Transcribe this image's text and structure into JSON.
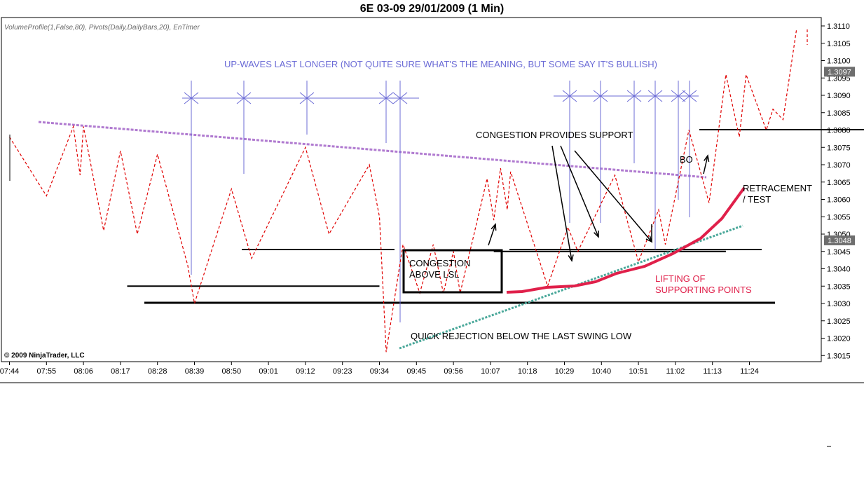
{
  "window": {
    "title": "6E 03-09  29/01/2009 (1 Min)"
  },
  "chart_data": {
    "type": "line",
    "indicator_label": "VolumeProfile(1,False,80), Pivots(Daily,DailyBars,20), EnTimer",
    "copyright": "© 2009 NinjaTrader, LLC",
    "x_ticks": [
      "07:44",
      "07:55",
      "08:06",
      "08:17",
      "08:28",
      "08:39",
      "08:50",
      "09:01",
      "09:12",
      "09:23",
      "09:34",
      "09:45",
      "09:56",
      "10:07",
      "10:18",
      "10:29",
      "10:40",
      "10:51",
      "11:02",
      "11:13",
      "11:24"
    ],
    "y_ticks": [
      "1.3015",
      "1.3020",
      "1.3025",
      "1.3030",
      "1.3035",
      "1.3040",
      "1.3045",
      "1.3050",
      "1.3055",
      "1.3060",
      "1.3065",
      "1.3070",
      "1.3075",
      "1.3080",
      "1.3085",
      "1.3090",
      "1.3095",
      "1.3100",
      "1.3105",
      "1.3110"
    ],
    "ylim": [
      1.30135,
      1.3112
    ],
    "price_markers": [
      {
        "label": "1.3097",
        "value": 1.30968
      },
      {
        "label": "1.3048",
        "value": 1.30482
      }
    ],
    "series": [
      {
        "color": "#e00000",
        "style": "dashed",
        "points": [
          [
            "07:44",
            1.3078
          ],
          [
            "07:55",
            1.3061
          ],
          [
            "08:03",
            1.3081
          ],
          [
            "08:05",
            1.3067
          ],
          [
            "08:06",
            1.3081
          ],
          [
            "08:12",
            1.3051
          ],
          [
            "08:17",
            1.3074
          ],
          [
            "08:22",
            1.305
          ],
          [
            "08:28",
            1.3073
          ],
          [
            "08:37",
            1.3041
          ],
          [
            "08:39",
            1.303
          ],
          [
            "08:50",
            1.3063
          ],
          [
            "08:56",
            1.3043
          ],
          [
            "09:12",
            1.3075
          ],
          [
            "09:19",
            1.305
          ],
          [
            "09:31",
            1.307
          ],
          [
            "09:34",
            1.3055
          ],
          [
            "09:36",
            1.3016
          ],
          [
            "09:41",
            1.3047
          ],
          [
            "09:46",
            1.3033
          ],
          [
            "09:50",
            1.3047
          ],
          [
            "09:53",
            1.3033
          ],
          [
            "09:56",
            1.3045
          ],
          [
            "09:58",
            1.3033
          ],
          [
            "10:06",
            1.3066
          ],
          [
            "10:08",
            1.3054
          ],
          [
            "10:10",
            1.3069
          ],
          [
            "10:12",
            1.3057
          ],
          [
            "10:13",
            1.3068
          ],
          [
            "10:22",
            1.3041
          ],
          [
            "10:24",
            1.3035
          ],
          [
            "10:30",
            1.3052
          ],
          [
            "10:33",
            1.3045
          ],
          [
            "10:44",
            1.3067
          ],
          [
            "10:51",
            1.3042
          ],
          [
            "10:57",
            1.3057
          ],
          [
            "10:59",
            1.3047
          ],
          [
            "11:06",
            1.308
          ],
          [
            "11:12",
            1.3059
          ],
          [
            "11:17",
            1.3096
          ],
          [
            "11:21",
            1.3078
          ],
          [
            "11:23",
            1.3096
          ],
          [
            "11:29",
            1.308
          ],
          [
            "11:31",
            1.3086
          ],
          [
            "11:34",
            1.3083
          ],
          [
            "11:38",
            1.3109
          ]
        ]
      }
    ],
    "annotations": {
      "up_waves": "UP-WAVES LAST LONGER  (NOT QUITE SURE WHAT'S THE MEANING, BUT SOME SAY IT'S BULLISH)",
      "congestion_support": "CONGESTION PROVIDES SUPPORT",
      "bo": "BO",
      "retracement_1": "RETRACEMENT",
      "retracement_2": "/ TEST",
      "congestion_lsl_1": "CONGESTION",
      "congestion_lsl_2": "ABOVE LSL",
      "lifting_1": "LIFTING OF",
      "lifting_2": "SUPPORTING POINTS",
      "quick_rejection": "QUICK REJECTION BELOW THE LAST SWING LOW"
    },
    "colors": {
      "price": "#e00000",
      "annotation_blue": "#6b6bd6",
      "lifting": "#e0204a",
      "trendline_falling": "#b07ad0",
      "trendline_rising": "#4aa89a"
    }
  }
}
